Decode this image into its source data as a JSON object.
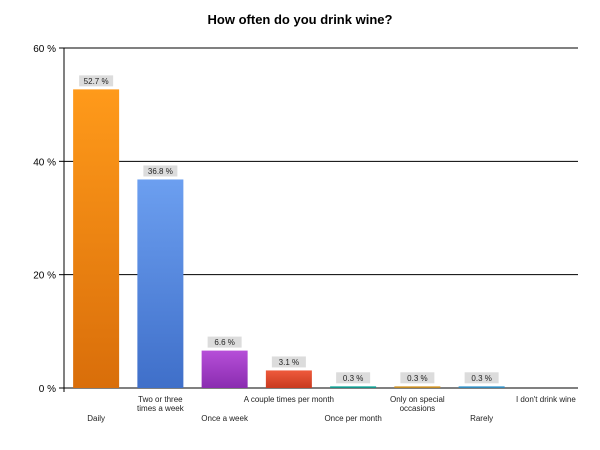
{
  "chart_data": {
    "type": "bar",
    "title": "How often do you drink wine?",
    "xlabel": "",
    "ylabel": "",
    "ylim": [
      0,
      60
    ],
    "yticks": [
      0,
      20,
      40,
      60
    ],
    "ytick_suffix": " %",
    "grid": true,
    "categories": [
      [
        "Daily"
      ],
      [
        "Two or three",
        "times a week"
      ],
      [
        "Once a week"
      ],
      [
        "A couple times per month"
      ],
      [
        "Once per month"
      ],
      [
        "Only on special",
        "occasions"
      ],
      [
        "Rarely"
      ],
      [
        "I don't drink wine"
      ]
    ],
    "values": [
      52.7,
      36.8,
      6.6,
      3.1,
      0.3,
      0.3,
      0.3,
      0
    ],
    "value_labels": [
      "52.7 %",
      "36.8 %",
      "6.6 %",
      "3.1 %",
      "0.3 %",
      "0.3 %",
      "0.3 %",
      ""
    ],
    "colors": [
      [
        "#ff9a1a",
        "#d96e0a"
      ],
      [
        "#6c9ff0",
        "#3f6fc9"
      ],
      [
        "#b64fd8",
        "#8a2cb0"
      ],
      [
        "#ee5a3c",
        "#c93a1f"
      ],
      [
        "#26b5a8",
        "#0f8a80"
      ],
      [
        "#e0a640",
        "#b57f1a"
      ],
      [
        "#4da6d9",
        "#2a7fb0"
      ],
      [
        "#999999",
        "#777777"
      ]
    ]
  }
}
